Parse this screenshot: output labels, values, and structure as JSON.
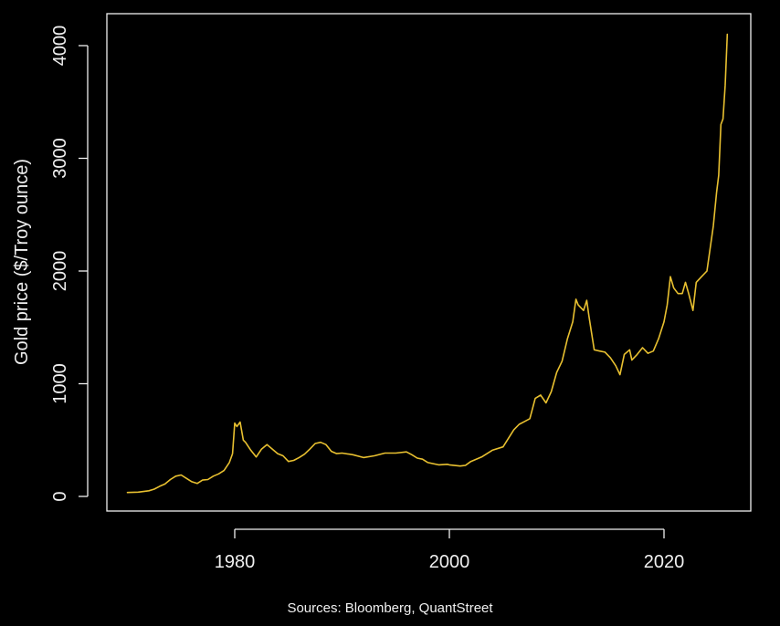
{
  "chart_data": {
    "type": "line",
    "title": "",
    "xlabel": "",
    "ylabel": "Gold price ($/Troy ounce)",
    "source": "Sources: Bloomberg, QuantStreet",
    "xlim": [
      1968,
      2028
    ],
    "ylim": [
      0,
      4100
    ],
    "x_ticks": [
      1980,
      2000,
      2020
    ],
    "x_tick_labels": [
      "1980",
      "2000",
      "2020"
    ],
    "y_ticks": [
      0,
      1000,
      2000,
      3000,
      4000
    ],
    "y_tick_labels": [
      "0",
      "1000",
      "2000",
      "3000",
      "4000"
    ],
    "grid": false,
    "colors": {
      "background": "#000000",
      "axes": "#f0f0f0",
      "line": "#e8c030"
    },
    "series": [
      {
        "x": [
          1970.0,
          1971.0,
          1972.0,
          1972.5,
          1973.0,
          1973.5,
          1974.0,
          1974.5,
          1975.0,
          1975.5,
          1976.0,
          1976.5,
          1977.0,
          1977.5,
          1978.0,
          1978.5,
          1979.0,
          1979.5,
          1979.8,
          1980.0,
          1980.2,
          1980.5,
          1980.8,
          1981.0,
          1981.5,
          1982.0,
          1982.5,
          1983.0,
          1983.5,
          1984.0,
          1984.5,
          1985.0,
          1985.5,
          1986.0,
          1986.5,
          1987.0,
          1987.5,
          1988.0,
          1988.5,
          1989.0,
          1989.5,
          1990.0,
          1991.0,
          1992.0,
          1993.0,
          1994.0,
          1995.0,
          1996.0,
          1996.5,
          1997.0,
          1997.5,
          1998.0,
          1999.0,
          1999.8,
          2000.0,
          2001.0,
          2001.5,
          2002.0,
          2003.0,
          2004.0,
          2005.0,
          2006.0,
          2006.5,
          2007.0,
          2007.5,
          2008.0,
          2008.5,
          2009.0,
          2009.5,
          2010.0,
          2010.5,
          2011.0,
          2011.5,
          2011.8,
          2012.0,
          2012.5,
          2012.8,
          2013.0,
          2013.5,
          2014.0,
          2014.5,
          2015.0,
          2015.5,
          2015.9,
          2016.3,
          2016.8,
          2017.0,
          2017.5,
          2018.0,
          2018.5,
          2019.0,
          2019.5,
          2020.0,
          2020.3,
          2020.6,
          2020.9,
          2021.3,
          2021.7,
          2022.0,
          2022.3,
          2022.7,
          2023.0,
          2023.5,
          2024.0,
          2024.3,
          2024.6,
          2024.9,
          2025.1,
          2025.3,
          2025.5,
          2025.7,
          2025.9
        ],
        "y": [
          35,
          38,
          50,
          65,
          90,
          110,
          150,
          180,
          190,
          160,
          130,
          115,
          145,
          150,
          180,
          200,
          230,
          300,
          380,
          650,
          620,
          660,
          500,
          480,
          410,
          350,
          420,
          460,
          420,
          380,
          360,
          310,
          320,
          345,
          375,
          420,
          470,
          480,
          460,
          400,
          380,
          385,
          370,
          345,
          360,
          385,
          385,
          395,
          370,
          340,
          330,
          300,
          280,
          285,
          280,
          270,
          275,
          310,
          350,
          410,
          440,
          590,
          640,
          665,
          690,
          870,
          900,
          830,
          930,
          1100,
          1200,
          1400,
          1550,
          1750,
          1700,
          1650,
          1740,
          1600,
          1300,
          1290,
          1280,
          1230,
          1160,
          1080,
          1260,
          1300,
          1210,
          1260,
          1320,
          1270,
          1290,
          1400,
          1550,
          1700,
          1950,
          1850,
          1800,
          1800,
          1900,
          1800,
          1650,
          1900,
          1950,
          2000,
          2200,
          2400,
          2700,
          2850,
          3300,
          3350,
          3650,
          4100
        ]
      }
    ]
  }
}
